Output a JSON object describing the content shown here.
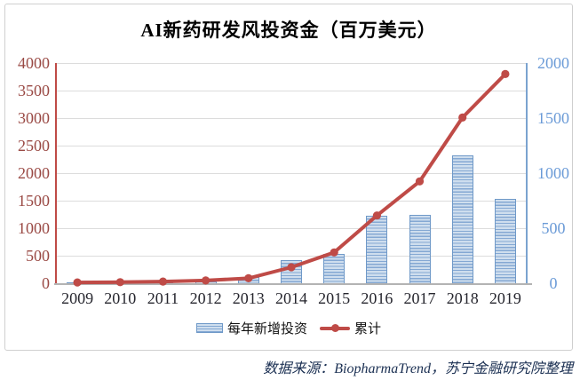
{
  "footer": {
    "source_note": "数据来源：BiopharmaTrend，苏宁金融研究院整理"
  },
  "chart_data": {
    "type": "bar",
    "subtype": "bar-line-combo",
    "title": "AI新药研发风投资金（百万美元）",
    "categories": [
      "2009",
      "2010",
      "2011",
      "2012",
      "2013",
      "2014",
      "2015",
      "2016",
      "2017",
      "2018",
      "2019"
    ],
    "series": [
      {
        "name": "每年新增投资",
        "type": "bar",
        "axis": "right",
        "color": "#9dbadd",
        "values": [
          5,
          5,
          10,
          15,
          60,
          210,
          265,
          615,
          620,
          1165,
          770
        ]
      },
      {
        "name": "累计",
        "type": "line",
        "axis": "left",
        "color": "#bf4b47",
        "values": [
          15,
          20,
          30,
          50,
          90,
          290,
          560,
          1230,
          1850,
          3010,
          3800
        ]
      }
    ],
    "left_axis": {
      "range": [
        0,
        4000
      ],
      "ticks": [
        0,
        500,
        1000,
        1500,
        2000,
        2500,
        3000,
        3500,
        4000
      ],
      "label_color": "#9a4a45"
    },
    "right_axis": {
      "range": [
        0,
        2000
      ],
      "ticks": [
        0,
        500,
        1000,
        1500,
        2000
      ],
      "label_color": "#6b9bd7"
    },
    "grid": true,
    "legend_position": "bottom"
  }
}
